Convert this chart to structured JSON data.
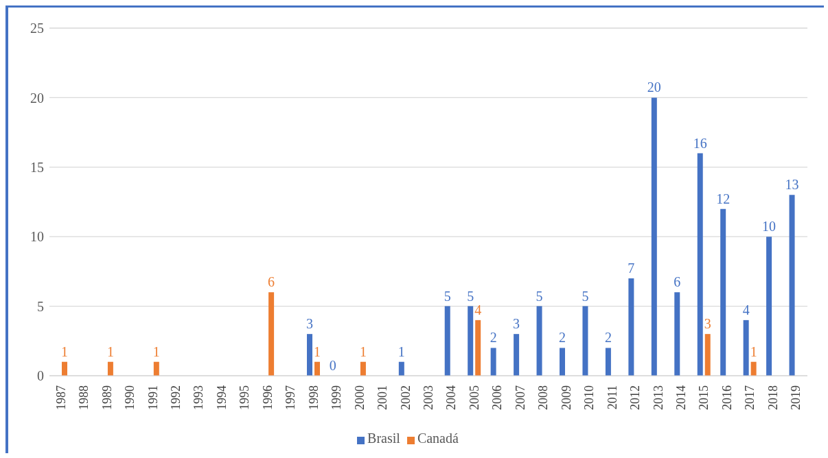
{
  "chart_data": {
    "type": "bar",
    "categories": [
      "1987",
      "1988",
      "1989",
      "1990",
      "1991",
      "1992",
      "1993",
      "1994",
      "1995",
      "1996",
      "1997",
      "1998",
      "1999",
      "2000",
      "2001",
      "2002",
      "2003",
      "2004",
      "2005",
      "2006",
      "2007",
      "2008",
      "2009",
      "2010",
      "2011",
      "2012",
      "2013",
      "2014",
      "2015",
      "2016",
      "2017",
      "2018",
      "2019"
    ],
    "series": [
      {
        "name": "Brasil",
        "color": "#4472c4",
        "values": [
          null,
          null,
          null,
          null,
          null,
          null,
          null,
          null,
          null,
          null,
          null,
          3,
          0,
          null,
          null,
          1,
          null,
          5,
          5,
          2,
          3,
          5,
          2,
          5,
          2,
          7,
          20,
          6,
          16,
          12,
          4,
          10,
          13
        ]
      },
      {
        "name": "Canadá",
        "color": "#ed7d31",
        "values": [
          1,
          null,
          1,
          null,
          1,
          null,
          null,
          null,
          null,
          6,
          null,
          1,
          null,
          1,
          null,
          null,
          null,
          null,
          4,
          null,
          null,
          null,
          null,
          null,
          null,
          null,
          null,
          null,
          3,
          null,
          1,
          null,
          null
        ]
      }
    ],
    "ylim": [
      0,
      25
    ],
    "yticks": [
      0,
      5,
      10,
      15,
      20,
      25
    ],
    "grid": "y",
    "legend": "bottom",
    "data_labels": true
  }
}
